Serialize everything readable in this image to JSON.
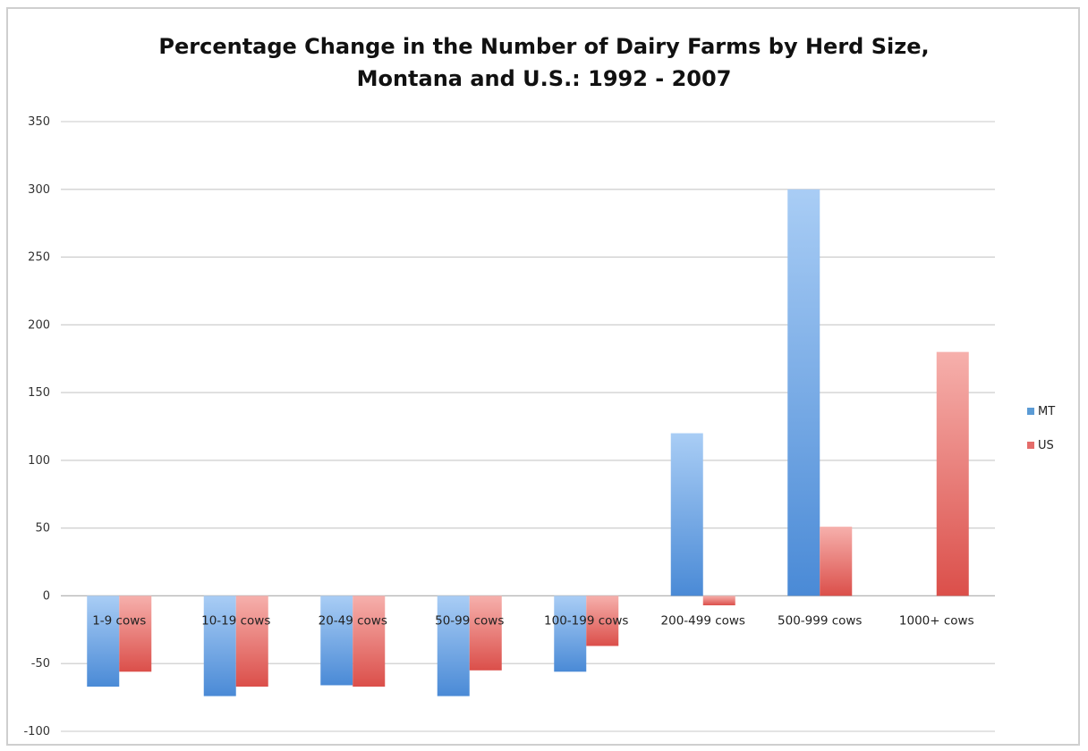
{
  "chart_data": {
    "type": "bar",
    "title": "Percentage Change in the Number of Dairy Farms by Herd Size,",
    "subtitle": "Montana and U.S.: 1992 - 2007",
    "xlabel": "",
    "ylabel": "",
    "ylim": [
      -100,
      350
    ],
    "yticks": [
      350,
      300,
      250,
      200,
      150,
      100,
      50,
      0,
      -50,
      -100
    ],
    "grid": true,
    "legend_position": "right",
    "categories": [
      "1-9 cows",
      "10-19 cows",
      "20-49 cows",
      "50-99 cows",
      "100-199 cows",
      "200-499 cows",
      "500-999 cows",
      "1000+ cows"
    ],
    "series": [
      {
        "name": "MT",
        "color": "#5b9bd5",
        "values": [
          -67,
          -74,
          -66,
          -74,
          -56,
          120,
          300,
          0
        ]
      },
      {
        "name": "US",
        "color": "#e46c6a",
        "values": [
          -56,
          -67,
          -67,
          -55,
          -37,
          -7,
          51,
          180
        ]
      }
    ]
  }
}
